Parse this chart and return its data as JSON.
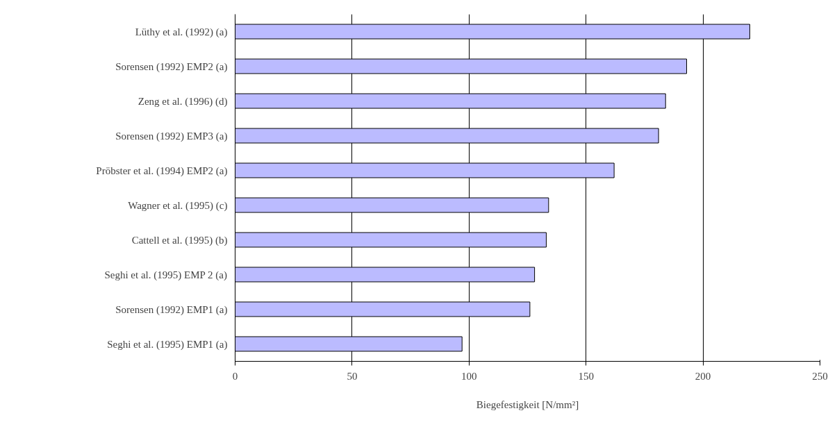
{
  "chart_data": {
    "type": "bar",
    "orientation": "horizontal",
    "xlabel": "Biegefestigkeit [N/mm²]",
    "categories": [
      "Lüthy et al. (1992) (a)",
      "Sorensen (1992) EMP2 (a)",
      "Zeng et al. (1996) (d)",
      "Sorensen (1992) EMP3 (a)",
      "Pröbster et al. (1994) EMP2 (a)",
      "Wagner et al. (1995) (c)",
      "Cattell et al. (1995) (b)",
      "Seghi et al. (1995) EMP 2 (a)",
      "Sorensen (1992) EMP1 (a)",
      "Seghi et al. (1995) EMP1 (a)"
    ],
    "values": [
      220,
      193,
      184,
      181,
      162,
      134,
      133,
      128,
      126,
      97
    ],
    "color": "#bbbbff",
    "xlim": [
      0,
      250
    ],
    "xticks": [
      0,
      50,
      100,
      150,
      200,
      250
    ],
    "grid": "x"
  }
}
